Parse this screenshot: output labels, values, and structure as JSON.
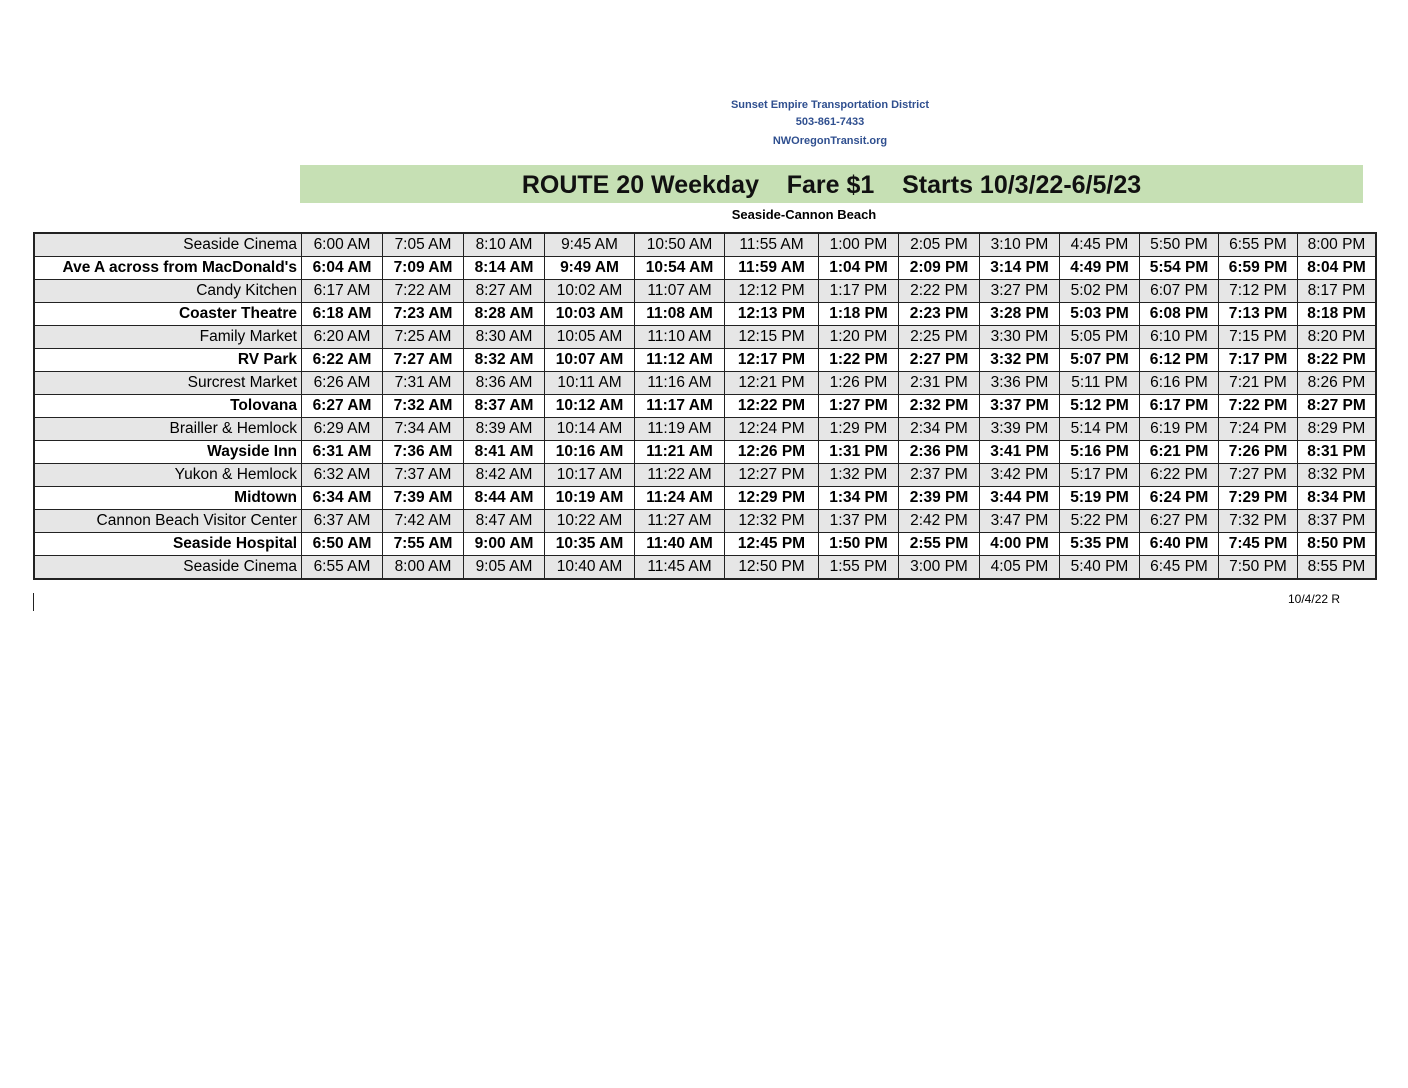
{
  "header": {
    "agency": "Sunset Empire Transportation District",
    "phone": "503-861-7433",
    "website": "NWOregonTransit.org"
  },
  "title": "ROUTE 20 Weekday    Fare $1    Starts 10/3/22-6/5/23",
  "subtitle": "Seaside-Cannon Beach",
  "accent_color": "#c6e0b4",
  "rows": [
    {
      "stop": "Seaside Cinema",
      "times": [
        "6:00 AM",
        "7:05 AM",
        "8:10 AM",
        "9:45 AM",
        "10:50 AM",
        "11:55 AM",
        "1:00 PM",
        "2:05 PM",
        "3:10 PM",
        "4:45 PM",
        "5:50 PM",
        "6:55 PM",
        "8:00 PM"
      ]
    },
    {
      "stop": "Ave A across from MacDonald's",
      "times": [
        "6:04 AM",
        "7:09 AM",
        "8:14 AM",
        "9:49 AM",
        "10:54 AM",
        "11:59 AM",
        "1:04 PM",
        "2:09 PM",
        "3:14 PM",
        "4:49 PM",
        "5:54 PM",
        "6:59 PM",
        "8:04 PM"
      ]
    },
    {
      "stop": "Candy Kitchen",
      "times": [
        "6:17 AM",
        "7:22 AM",
        "8:27 AM",
        "10:02 AM",
        "11:07 AM",
        "12:12 PM",
        "1:17 PM",
        "2:22 PM",
        "3:27 PM",
        "5:02 PM",
        "6:07 PM",
        "7:12 PM",
        "8:17 PM"
      ]
    },
    {
      "stop": "Coaster Theatre",
      "times": [
        "6:18 AM",
        "7:23 AM",
        "8:28 AM",
        "10:03 AM",
        "11:08 AM",
        "12:13 PM",
        "1:18 PM",
        "2:23 PM",
        "3:28 PM",
        "5:03 PM",
        "6:08 PM",
        "7:13 PM",
        "8:18 PM"
      ]
    },
    {
      "stop": "Family Market",
      "times": [
        "6:20 AM",
        "7:25 AM",
        "8:30 AM",
        "10:05 AM",
        "11:10 AM",
        "12:15 PM",
        "1:20 PM",
        "2:25 PM",
        "3:30 PM",
        "5:05 PM",
        "6:10 PM",
        "7:15 PM",
        "8:20 PM"
      ]
    },
    {
      "stop": "RV Park",
      "times": [
        "6:22 AM",
        "7:27 AM",
        "8:32 AM",
        "10:07 AM",
        "11:12 AM",
        "12:17 PM",
        "1:22 PM",
        "2:27 PM",
        "3:32 PM",
        "5:07 PM",
        "6:12 PM",
        "7:17 PM",
        "8:22 PM"
      ]
    },
    {
      "stop": "Surcrest Market",
      "times": [
        "6:26 AM",
        "7:31 AM",
        "8:36 AM",
        "10:11 AM",
        "11:16 AM",
        "12:21 PM",
        "1:26 PM",
        "2:31 PM",
        "3:36 PM",
        "5:11 PM",
        "6:16 PM",
        "7:21 PM",
        "8:26 PM"
      ]
    },
    {
      "stop": "Tolovana",
      "times": [
        "6:27 AM",
        "7:32 AM",
        "8:37 AM",
        "10:12 AM",
        "11:17 AM",
        "12:22 PM",
        "1:27 PM",
        "2:32 PM",
        "3:37 PM",
        "5:12 PM",
        "6:17 PM",
        "7:22 PM",
        "8:27 PM"
      ]
    },
    {
      "stop": "Brailler & Hemlock",
      "times": [
        "6:29 AM",
        "7:34 AM",
        "8:39 AM",
        "10:14 AM",
        "11:19 AM",
        "12:24 PM",
        "1:29 PM",
        "2:34 PM",
        "3:39 PM",
        "5:14 PM",
        "6:19 PM",
        "7:24 PM",
        "8:29 PM"
      ]
    },
    {
      "stop": "Wayside Inn",
      "times": [
        "6:31 AM",
        "7:36 AM",
        "8:41 AM",
        "10:16 AM",
        "11:21 AM",
        "12:26 PM",
        "1:31 PM",
        "2:36 PM",
        "3:41 PM",
        "5:16 PM",
        "6:21 PM",
        "7:26 PM",
        "8:31 PM"
      ]
    },
    {
      "stop": "Yukon & Hemlock",
      "times": [
        "6:32 AM",
        "7:37 AM",
        "8:42 AM",
        "10:17 AM",
        "11:22 AM",
        "12:27 PM",
        "1:32 PM",
        "2:37 PM",
        "3:42 PM",
        "5:17 PM",
        "6:22 PM",
        "7:27 PM",
        "8:32 PM"
      ]
    },
    {
      "stop": "Midtown",
      "times": [
        "6:34 AM",
        "7:39 AM",
        "8:44 AM",
        "10:19 AM",
        "11:24 AM",
        "12:29 PM",
        "1:34 PM",
        "2:39 PM",
        "3:44 PM",
        "5:19 PM",
        "6:24 PM",
        "7:29 PM",
        "8:34 PM"
      ]
    },
    {
      "stop": "Cannon Beach Visitor Center",
      "times": [
        "6:37 AM",
        "7:42 AM",
        "8:47 AM",
        "10:22 AM",
        "11:27 AM",
        "12:32 PM",
        "1:37 PM",
        "2:42 PM",
        "3:47 PM",
        "5:22 PM",
        "6:27 PM",
        "7:32 PM",
        "8:37 PM"
      ]
    },
    {
      "stop": "Seaside Hospital",
      "times": [
        "6:50 AM",
        "7:55 AM",
        "9:00 AM",
        "10:35 AM",
        "11:40 AM",
        "12:45 PM",
        "1:50 PM",
        "2:55 PM",
        "4:00 PM",
        "5:35 PM",
        "6:40 PM",
        "7:45 PM",
        "8:50 PM"
      ]
    },
    {
      "stop": "Seaside Cinema",
      "times": [
        "6:55 AM",
        "8:00 AM",
        "9:05 AM",
        "10:40 AM",
        "11:45 AM",
        "12:50 PM",
        "1:55 PM",
        "3:00 PM",
        "4:05 PM",
        "5:40 PM",
        "6:45 PM",
        "7:50 PM",
        "8:55 PM"
      ]
    }
  ],
  "revision": "10/4/22 R"
}
